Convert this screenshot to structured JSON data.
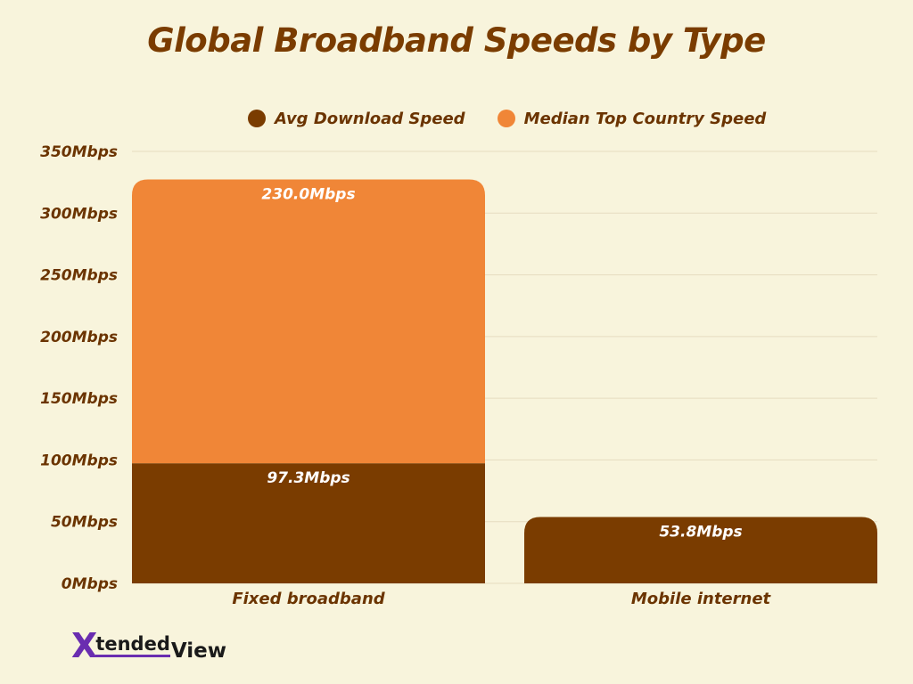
{
  "title": "Global Broadband Speeds by Type",
  "legend": {
    "items": [
      {
        "label": "Avg Download Speed",
        "color": "#7a3c00"
      },
      {
        "label": "Median Top Country Speed",
        "color": "#f08637"
      }
    ]
  },
  "colors": {
    "background": "#f8f4dc",
    "title": "#7a3c00",
    "grid": "#e6dcc0",
    "axis_text": "#6b3400"
  },
  "logo": {
    "x_mark": "X",
    "word_part1": "tended",
    "word_part2": "View",
    "accent_color": "#6a2db0"
  },
  "chart_data": {
    "type": "bar",
    "stacked": true,
    "title": "Global Broadband Speeds by Type",
    "xlabel": "",
    "ylabel": "",
    "categories": [
      "Fixed broadband",
      "Mobile internet"
    ],
    "series": [
      {
        "name": "Avg Download Speed",
        "color": "#7a3c00",
        "values": [
          97.3,
          53.8
        ],
        "labels": [
          "97.3Mbps",
          "53.8Mbps"
        ]
      },
      {
        "name": "Median Top Country Speed",
        "color": "#f08637",
        "values": [
          230.0,
          null
        ],
        "labels": [
          "230.0Mbps",
          null
        ]
      }
    ],
    "ylim": [
      0,
      350
    ],
    "yticks": [
      0,
      50,
      100,
      150,
      200,
      250,
      300,
      350
    ],
    "ytick_labels": [
      "0Mbps",
      "50Mbps",
      "100Mbps",
      "150Mbps",
      "200Mbps",
      "250Mbps",
      "300Mbps",
      "350Mbps"
    ],
    "grid": true,
    "legend_position": "top-center"
  }
}
